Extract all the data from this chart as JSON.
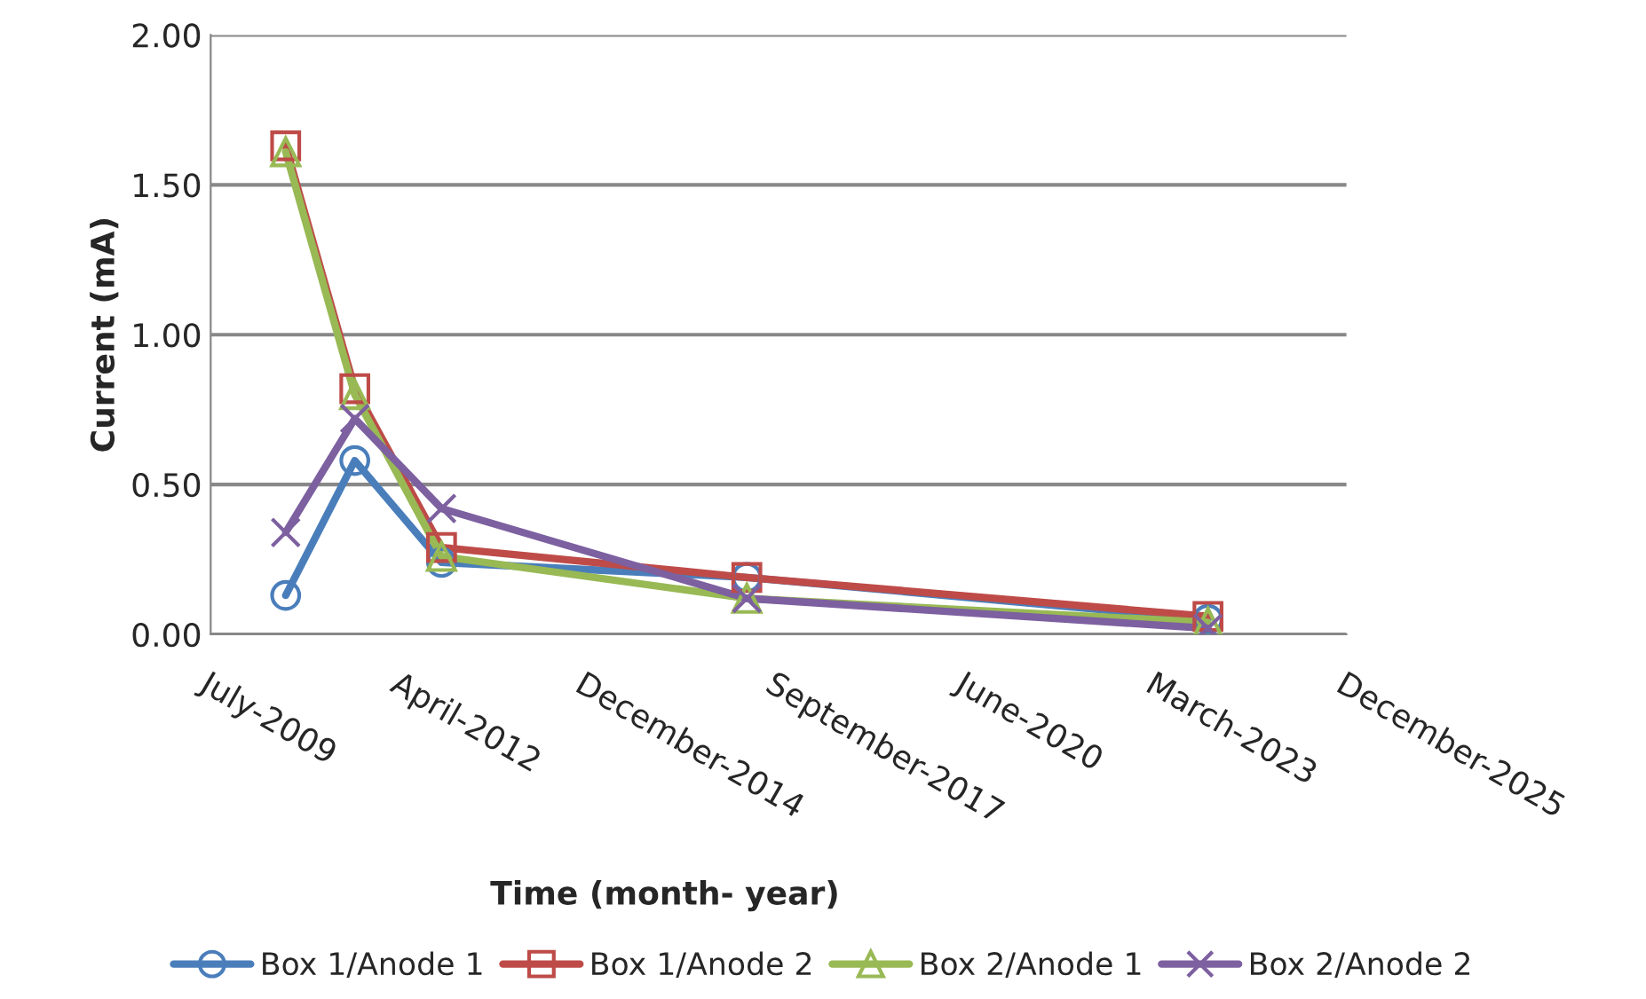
{
  "chart_data": {
    "type": "line",
    "xlabel": "Time (month- year)",
    "ylabel": "Current (mA)",
    "x": [
      "2010-08",
      "2011-08",
      "2012-11",
      "2017-04",
      "2023-12"
    ],
    "series": [
      {
        "name": "Box 1/Anode 1",
        "color": "#4a7ebb",
        "marker": "circle",
        "values": [
          0.13,
          0.58,
          0.24,
          0.19,
          0.05
        ]
      },
      {
        "name": "Box 1/Anode 2",
        "color": "#be4b48",
        "marker": "square",
        "values": [
          1.63,
          0.82,
          0.29,
          0.19,
          0.06
        ]
      },
      {
        "name": "Box 2/Anode 1",
        "color": "#98b954",
        "marker": "triangle",
        "values": [
          1.61,
          0.8,
          0.26,
          0.12,
          0.04
        ]
      },
      {
        "name": "Box 2/Anode 2",
        "color": "#7d60a0",
        "marker": "cross",
        "values": [
          0.34,
          0.72,
          0.42,
          0.12,
          0.02
        ]
      }
    ],
    "xlim": [
      "2009-07-15",
      "2025-12-15"
    ],
    "xticks": [
      {
        "value": "2009-07-15",
        "label": "July-2009"
      },
      {
        "value": "2012-04-15",
        "label": "April-2012"
      },
      {
        "value": "2014-12-15",
        "label": "December-2014"
      },
      {
        "value": "2017-09-15",
        "label": "September-2017"
      },
      {
        "value": "2020-06-15",
        "label": "June-2020"
      },
      {
        "value": "2023-03-15",
        "label": "March-2023"
      },
      {
        "value": "2025-12-15",
        "label": "December-2025"
      }
    ],
    "ylim": [
      0,
      2.0
    ],
    "yticks": [
      {
        "value": 0,
        "label": "0.00"
      },
      {
        "value": 0.5,
        "label": "0.50"
      },
      {
        "value": 1.0,
        "label": "1.00"
      },
      {
        "value": 1.5,
        "label": "1.50"
      },
      {
        "value": 2.0,
        "label": "2.00"
      }
    ],
    "grid": "y",
    "legend": "bottom",
    "line_style": "solid"
  }
}
